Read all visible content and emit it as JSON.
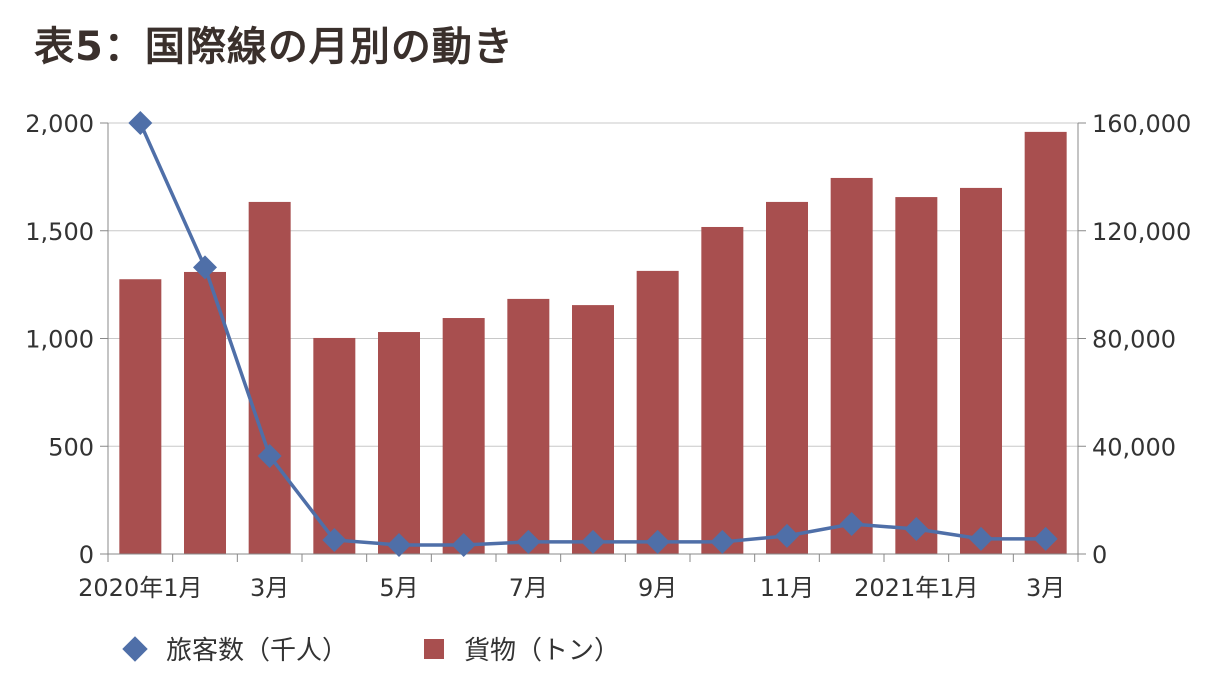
{
  "title": "表5：国際線の月別の動き",
  "colors": {
    "passengers": "#4f6fa8",
    "cargo": "#a84f4f",
    "grid": "#c8c8c8"
  },
  "chart_data": {
    "type": "bar+line",
    "categories": [
      "2020-01",
      "2020-02",
      "2020-03",
      "2020-04",
      "2020-05",
      "2020-06",
      "2020-07",
      "2020-08",
      "2020-09",
      "2020-10",
      "2020-11",
      "2020-12",
      "2021-01",
      "2021-02",
      "2021-03"
    ],
    "tick_labels": [
      "2020年1月",
      "",
      "3月",
      "",
      "5月",
      "",
      "7月",
      "",
      "9月",
      "",
      "11月",
      "",
      "2021年1月",
      "",
      "3月"
    ],
    "series": [
      {
        "name": "旅客数（千人）",
        "type": "line",
        "axis": "left",
        "values": [
          2000,
          1330,
          455,
          65,
          42,
          42,
          56,
          56,
          56,
          56,
          84,
          139,
          116,
          70,
          70
        ]
      },
      {
        "name": "貨物（トン）",
        "type": "bar",
        "axis": "right",
        "values": [
          102000,
          104700,
          130700,
          80200,
          82400,
          87600,
          94700,
          92400,
          105100,
          121400,
          130700,
          139600,
          132500,
          135900,
          156700
        ]
      }
    ],
    "ylim_left": [
      0,
      2000
    ],
    "yticks_left": [
      "0",
      "500",
      "1,000",
      "1,500",
      "2,000"
    ],
    "ylim_right": [
      0,
      160000
    ],
    "yticks_right": [
      "0",
      "40,000",
      "80,000",
      "120,000",
      "160,000"
    ],
    "grid": true,
    "legend": "bottom"
  }
}
